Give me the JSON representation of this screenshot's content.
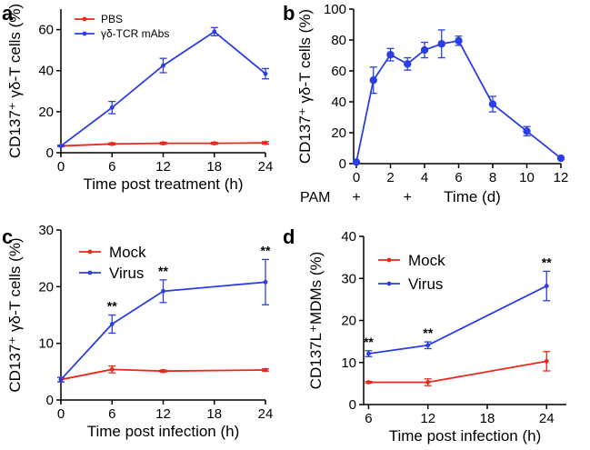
{
  "figure": {
    "description_letters": [
      "a",
      "b",
      "c",
      "d"
    ]
  },
  "chart_data": [
    {
      "panel": "a",
      "type": "line",
      "title": "",
      "xlabel": "Time post treatment (h)",
      "ylabel": "CD137⁺ γδ-T cells (%)",
      "xlim": [
        0,
        24
      ],
      "ylim": [
        0,
        70
      ],
      "xticks": [
        0,
        6,
        12,
        18,
        24
      ],
      "yticks": [
        0,
        20,
        40,
        60
      ],
      "legend_position": "top-left",
      "series": [
        {
          "name": "PBS",
          "color": "#e8291c",
          "x": [
            0,
            6,
            12,
            18,
            24
          ],
          "values": [
            3.3,
            4.3,
            4.6,
            4.6,
            4.8
          ],
          "errors": [
            0.3,
            0.5,
            0.5,
            0.5,
            0.6
          ]
        },
        {
          "name": "γδ-TCR mAbs",
          "color": "#2b3ee6",
          "x": [
            0,
            6,
            12,
            18,
            24
          ],
          "values": [
            3.3,
            22,
            42.5,
            59,
            38.5
          ],
          "errors": [
            0.3,
            3,
            3.5,
            2,
            2.5
          ]
        }
      ]
    },
    {
      "panel": "b",
      "type": "line",
      "title": "",
      "xlabel": "Time (d)",
      "ylabel": "CD137⁺ γδ-T cells (%)",
      "xlim": [
        0,
        12
      ],
      "ylim": [
        0,
        100
      ],
      "xticks": [
        0,
        2,
        4,
        6,
        8,
        10,
        12
      ],
      "yticks": [
        0,
        20,
        40,
        60,
        80,
        100
      ],
      "annotation_label": "PAM",
      "annotation_marks": [
        {
          "x": 0,
          "text": "+"
        },
        {
          "x": 3,
          "text": "+"
        }
      ],
      "series": [
        {
          "name": "",
          "color": "#2b3ee6",
          "x": [
            0,
            1,
            2,
            3,
            4,
            5,
            6,
            8,
            10,
            12
          ],
          "values": [
            1,
            54,
            70.5,
            64.5,
            73.5,
            77.5,
            79.5,
            38.5,
            21,
            3.5
          ],
          "errors": [
            0,
            8.5,
            4,
            4,
            5,
            9,
            3,
            5,
            3,
            0
          ]
        }
      ]
    },
    {
      "panel": "c",
      "type": "line",
      "title": "",
      "xlabel": "Time post infection (h)",
      "ylabel": "CD137⁺ γδ-T cells (%)",
      "xlim": [
        0,
        24
      ],
      "ylim": [
        0,
        30
      ],
      "xticks": [
        0,
        6,
        12,
        18,
        24
      ],
      "yticks": [
        0,
        10,
        20,
        30
      ],
      "legend_position": "top-left",
      "significance": [
        {
          "x": 6,
          "text": "**"
        },
        {
          "x": 12,
          "text": "**"
        },
        {
          "x": 24,
          "text": "**"
        }
      ],
      "series": [
        {
          "name": "Mock",
          "color": "#e8291c",
          "x": [
            0,
            6,
            12,
            24
          ],
          "values": [
            3.6,
            5.4,
            5.1,
            5.3
          ],
          "errors": [
            0.4,
            0.6,
            0.2,
            0.2
          ]
        },
        {
          "name": "Virus",
          "color": "#2b3ee6",
          "x": [
            0,
            6,
            12,
            24
          ],
          "values": [
            3.6,
            13.4,
            19.2,
            20.8
          ],
          "errors": [
            0.4,
            1.6,
            2.0,
            4.0
          ]
        }
      ]
    },
    {
      "panel": "d",
      "type": "line",
      "title": "",
      "xlabel": "Time post infection (h)",
      "ylabel": "CD137L⁺MDMs (%)",
      "xlim": [
        5.5,
        26
      ],
      "ylim": [
        0,
        40
      ],
      "xticks": [
        6,
        12,
        18,
        24
      ],
      "yticks": [
        0,
        10,
        20,
        30,
        40
      ],
      "legend_position": "top-left",
      "significance": [
        {
          "x": 6,
          "text": "**"
        },
        {
          "x": 12,
          "text": "**"
        },
        {
          "x": 24,
          "text": "**"
        }
      ],
      "series": [
        {
          "name": "Mock",
          "color": "#e8291c",
          "x": [
            6,
            12,
            24
          ],
          "values": [
            5.3,
            5.3,
            10.3
          ],
          "errors": [
            0.2,
            0.8,
            2.3
          ]
        },
        {
          "name": "Virus",
          "color": "#2b3ee6",
          "x": [
            6,
            12,
            24
          ],
          "values": [
            12.1,
            14.1,
            28.2
          ],
          "errors": [
            0.7,
            0.8,
            3.5
          ]
        }
      ]
    }
  ]
}
